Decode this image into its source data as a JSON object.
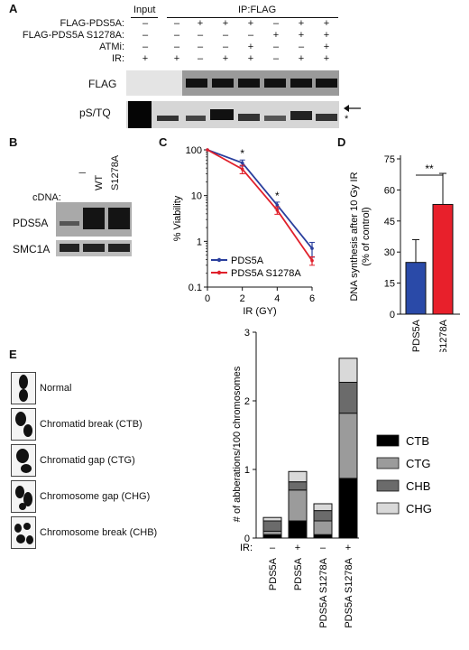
{
  "panelA": {
    "letter": "A",
    "input_label": "Input",
    "ip_label": "IP:FLAG",
    "row_labels": [
      "FLAG-PDS5A:",
      "FLAG-PDS5A S1278A:",
      "ATMi:",
      "IR:"
    ],
    "rows": [
      [
        "–",
        "–",
        "+",
        "+",
        "+",
        "–",
        "+",
        "+"
      ],
      [
        "–",
        "–",
        "–",
        "–",
        "–",
        "+",
        "+",
        "+"
      ],
      [
        "–",
        "–",
        "–",
        "–",
        "+",
        "–",
        "–",
        "+"
      ],
      [
        "+",
        "+",
        "–",
        "+",
        "+",
        "–",
        "+",
        "+"
      ]
    ],
    "blot_labels": [
      "FLAG",
      "pS/TQ"
    ],
    "marker_star": "*"
  },
  "panelB": {
    "letter": "B",
    "cdna_label": "cDNA:",
    "lanes": [
      "I",
      "WT",
      "S1278A"
    ],
    "blot_labels": [
      "PDS5A",
      "SMC1A"
    ]
  },
  "panelC": {
    "letter": "C",
    "star": "*",
    "chart_data": {
      "type": "line",
      "title": "",
      "xlabel": "IR (GY)",
      "ylabel": "% Viability",
      "x": [
        0,
        2,
        4,
        6
      ],
      "xlim": [
        0,
        6
      ],
      "ylim": [
        0.1,
        100
      ],
      "yscale": "log",
      "xticks": [
        "0",
        "2",
        "4",
        "6"
      ],
      "yticks": [
        "0.1",
        "1",
        "10",
        "100"
      ],
      "legend_position": "bottom-left",
      "series": [
        {
          "name": "PDS5A",
          "color": "#2a3f9d",
          "values": [
            100,
            52,
            6.2,
            0.7
          ],
          "errors": [
            0,
            8,
            1.0,
            0.25
          ]
        },
        {
          "name": "PDS5A S1278A",
          "color": "#e0202b",
          "values": [
            100,
            38,
            4.8,
            0.38
          ],
          "errors": [
            0,
            8,
            0.9,
            0.08
          ]
        }
      ],
      "annotations": [
        {
          "x": 2,
          "text": "*"
        },
        {
          "x": 4,
          "text": "*"
        }
      ]
    }
  },
  "panelD": {
    "letter": "D",
    "significance": "**",
    "chart_data": {
      "type": "bar",
      "title": "",
      "categories": [
        "PDS5A",
        "PDS5A S1278A"
      ],
      "values": [
        25,
        53
      ],
      "errors": [
        11,
        15
      ],
      "colors": [
        "#2a4aa8",
        "#e8202b"
      ],
      "ylabel": "DNA synthesis after 10 Gy IR\n(% of control)",
      "ylim": [
        0,
        75
      ],
      "yticks": [
        "0",
        "15",
        "30",
        "45",
        "60",
        "75"
      ]
    }
  },
  "panelE": {
    "letter": "E",
    "chromosome_labels": [
      "Normal",
      "Chromatid break (CTB)",
      "Chromatid gap (CTG)",
      "Chromosome gap (CHG)",
      "Chromosome break (CHB)"
    ],
    "ir_label": "IR:",
    "ir_values": [
      "–",
      "+",
      "–",
      "+"
    ],
    "chart_data": {
      "type": "bar",
      "title": "",
      "stacked": true,
      "categories": [
        "PDS5A",
        "PDS5A",
        "PDS5A S1278A",
        "PDS5A S1278A"
      ],
      "ylabel": "# of abberations/100 chromosomes",
      "ylim": [
        0,
        3
      ],
      "yticks": [
        "0",
        "1",
        "2",
        "3"
      ],
      "legend_position": "right",
      "series": [
        {
          "name": "CTB",
          "color": "#000000",
          "values": [
            0.05,
            0.25,
            0.05,
            0.87
          ]
        },
        {
          "name": "CTG",
          "color": "#9b9b9b",
          "values": [
            0.05,
            0.45,
            0.2,
            0.95
          ]
        },
        {
          "name": "CHB",
          "color": "#6b6b6b",
          "values": [
            0.15,
            0.12,
            0.15,
            0.45
          ]
        },
        {
          "name": "CHG",
          "color": "#d9d9d9",
          "values": [
            0.05,
            0.15,
            0.1,
            0.35
          ]
        }
      ]
    }
  }
}
